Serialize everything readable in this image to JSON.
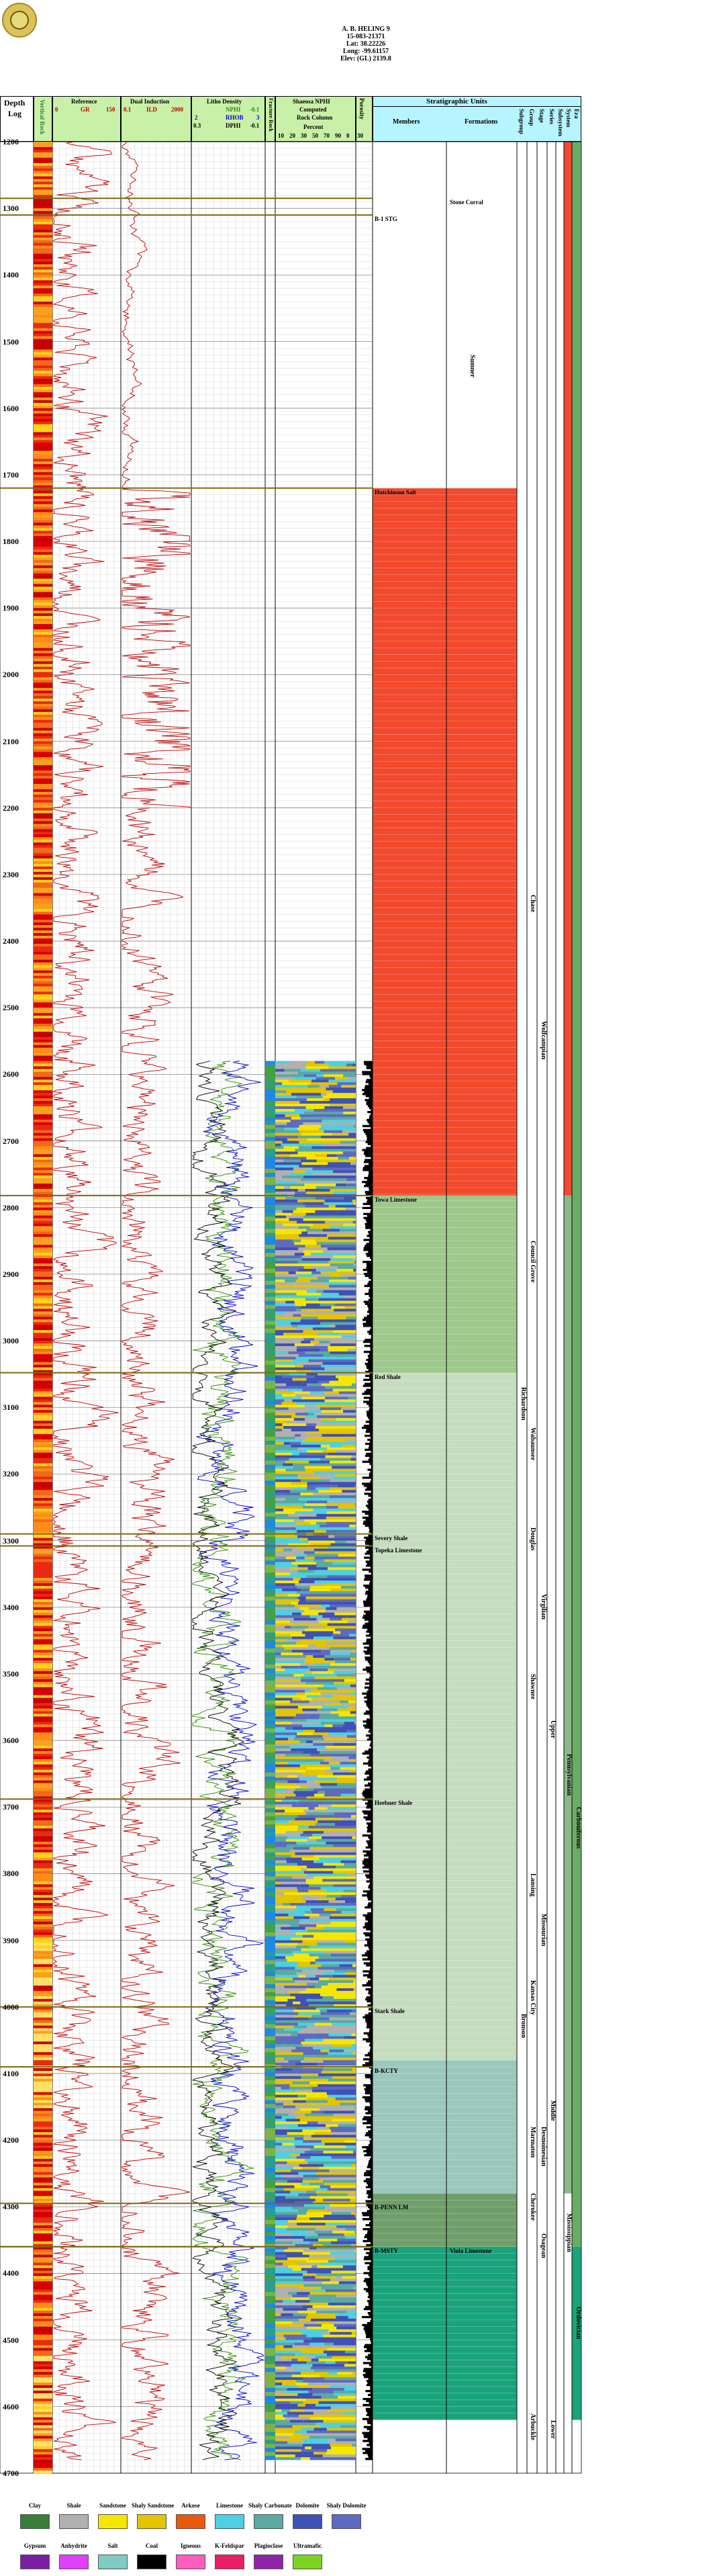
{
  "well": {
    "name": "A. B. HELING 9",
    "api": "15-083-21371",
    "lat": "Lat: 38.22226",
    "long": "Long: -99.61157",
    "elev": "Elev: (GL) 2139.8"
  },
  "headers": {
    "depth": "Depth",
    "log": "Log",
    "vertical_rock": "Vertical Rock",
    "reference": "Reference",
    "gr": "GR",
    "gr_max": "150",
    "gr_min": "0",
    "dual_induction": "Dual Induction",
    "ild": "ILD",
    "ild_max": "2000",
    "ild_min": "0.1",
    "litho_density": "Litho Density",
    "nphi": "NPHI",
    "nphi_val": "-0.1",
    "rhob": "RHOB",
    "rhob_left": "2",
    "rhob_right": "3",
    "dphi": "DPHI",
    "dphi_val": "-0.1",
    "dphi_left": "0.3",
    "fracture": "Fracture Rock",
    "shaeosa": "Shaeosa NPHI",
    "computed": "Computed",
    "rock_column": "Rock Column",
    "percent": "Percent",
    "pct_ticks": [
      "10",
      "20",
      "30",
      "50",
      "70",
      "90",
      "0"
    ],
    "porosity": "Porosity",
    "pct_scale": "30",
    "strat_units": "Stratigraphic Units",
    "members": "Members",
    "formations": "Formations",
    "subgroup": "Subgroup",
    "group": "Group",
    "stage": "Stage",
    "series": "Series",
    "subsystem": "Subsystem",
    "system": "System",
    "era": "Era"
  },
  "depths": [
    "1200",
    "1300",
    "1400",
    "1500",
    "1600",
    "1700",
    "1800",
    "1900",
    "2000",
    "2100",
    "2200",
    "2300",
    "2400",
    "2500",
    "2600",
    "2700",
    "2800",
    "2900",
    "3000",
    "3100",
    "3200",
    "3300",
    "3400",
    "3500",
    "3600",
    "3700",
    "3800",
    "3900",
    "4000",
    "4100",
    "4200",
    "4300",
    "4400",
    "4500",
    "4600",
    "4700"
  ],
  "members": [
    {
      "label": "Stone Corral",
      "depth": 1285
    },
    {
      "label": "B-1 STG",
      "depth": 1310
    },
    {
      "label": "Hutchinson Salt",
      "depth": 1720
    },
    {
      "label": "Towa Limestone",
      "depth": 2782
    },
    {
      "label": "Red Shale",
      "depth": 3048
    },
    {
      "label": "Severy Shale",
      "depth": 3290
    },
    {
      "label": "Topeka Limestone",
      "depth": 3308
    },
    {
      "label": "Heebner Shale",
      "depth": 3688
    },
    {
      "label": "Stark Shale",
      "depth": 4000
    },
    {
      "label": "B-KCTY",
      "depth": 4090
    },
    {
      "label": "B-PENN LM",
      "depth": 4295
    },
    {
      "label": "B-MSTY",
      "depth": 4360
    },
    {
      "label": "Viola Limestone",
      "depth": 4360
    }
  ],
  "vertical_labels": [
    {
      "text": "Sumner",
      "depth": 1520,
      "col": "formation"
    },
    {
      "text": "Chase",
      "depth": 2330,
      "col": "group"
    },
    {
      "text": "Wolfcampian",
      "depth": 2520,
      "col": "stage"
    },
    {
      "text": "Council Grove",
      "depth": 2850,
      "col": "group"
    },
    {
      "text": "Wabaunsee",
      "depth": 3130,
      "col": "group"
    },
    {
      "text": "Richardson",
      "depth": 3070,
      "col": "subgroup"
    },
    {
      "text": "Shawnee",
      "depth": 3500,
      "col": "group"
    },
    {
      "text": "Virgilian",
      "depth": 3380,
      "col": "stage"
    },
    {
      "text": "Douglas",
      "depth": 3280,
      "col": "group"
    },
    {
      "text": "Upper",
      "depth": 3570,
      "col": "series"
    },
    {
      "text": "Pennsylvanian",
      "depth": 3620,
      "col": "system"
    },
    {
      "text": "Lansing",
      "depth": 3800,
      "col": "group"
    },
    {
      "text": "Missourian",
      "depth": 3860,
      "col": "stage"
    },
    {
      "text": "Kansas City",
      "depth": 3960,
      "col": "group"
    },
    {
      "text": "Carboniferous",
      "depth": 3700,
      "col": "era"
    },
    {
      "text": "Bronson",
      "depth": 4010,
      "col": "subgroup"
    },
    {
      "text": "Marmaton",
      "depth": 4180,
      "col": "group"
    },
    {
      "text": "Desmoinesian",
      "depth": 4180,
      "col": "stage"
    },
    {
      "text": "Middle",
      "depth": 4140,
      "col": "series"
    },
    {
      "text": "Cherokee",
      "depth": 4280,
      "col": "group"
    },
    {
      "text": "Mississippian",
      "depth": 4310,
      "col": "system"
    },
    {
      "text": "Osagean",
      "depth": 4340,
      "col": "stage"
    },
    {
      "text": "Ordovician",
      "depth": 4450,
      "col": "era"
    },
    {
      "text": "Lower",
      "depth": 4620,
      "col": "series"
    },
    {
      "text": "Arbuckle",
      "depth": 4610,
      "col": "group"
    }
  ],
  "legend": [
    {
      "label": "Clay",
      "color": "#3a7c3a"
    },
    {
      "label": "Shale",
      "color": "#b0b0b0"
    },
    {
      "label": "Sandstone",
      "color": "#f5e600"
    },
    {
      "label": "Shaly Sandstone",
      "color": "#e2c400"
    },
    {
      "label": "Arkose",
      "color": "#e8590c"
    },
    {
      "label": "Limestone",
      "color": "#4dd0e1"
    },
    {
      "label": "Shaly Carbonate",
      "color": "#5aa9a3"
    },
    {
      "label": "Dolomite",
      "color": "#3f51b5"
    },
    {
      "label": "Shaly Dolomite",
      "color": "#5c6bc0"
    },
    {
      "label": "Gypsum",
      "color": "#7b1fa2"
    },
    {
      "label": "Anhydrite",
      "color": "#e040fb"
    },
    {
      "label": "Salt",
      "color": "#80cbc4"
    },
    {
      "label": "Coal",
      "color": "#000000"
    },
    {
      "label": "Igneous",
      "color": "#ff5cc0"
    },
    {
      "label": "K-Feldspar",
      "color": "#e91e63"
    },
    {
      "label": "Plagioclase",
      "color": "#8e24aa"
    },
    {
      "label": "Ultramafic",
      "color": "#7ed321"
    }
  ],
  "colors": {
    "header_green": "#c8f0a8",
    "header_cyan": "#b6f5ff",
    "red_zone": "#f24a2e",
    "green_zone": "#9fc88c",
    "pale_green": "#c6dcbf",
    "teal_zone": "#9cc7bd",
    "emerald": "#1aa37a",
    "gr_curve": "#c00000",
    "ild_curve": "#c00000",
    "nphi_curve": "#2e8b00",
    "rhob_curve": "#0000cc"
  }
}
